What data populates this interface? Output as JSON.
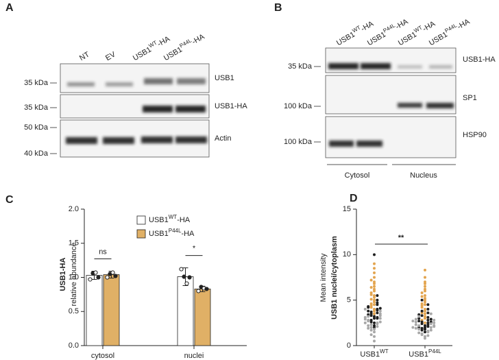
{
  "panel_labels": [
    "A",
    "B",
    "C",
    "D"
  ],
  "blot_a": {
    "lanes": [
      [
        "NT"
      ],
      [
        "EV"
      ],
      [
        "USB1",
        "WT",
        "-HA"
      ],
      [
        "USB1",
        "P44L",
        "-HA"
      ]
    ],
    "proteins": [
      "USB1",
      "USB1-HA",
      "Actin"
    ],
    "markers": [
      "35 kDa",
      "35 kDa",
      "50 kDa",
      "40 kDa"
    ]
  },
  "blot_b": {
    "lanes": [
      [
        "USB1",
        "WT",
        "-HA"
      ],
      [
        "USB1",
        "P44L",
        "-HA"
      ],
      [
        "USB1",
        "WT",
        "-HA"
      ],
      [
        "USB1",
        "P44L",
        "-HA"
      ]
    ],
    "proteins": [
      "USB1-HA",
      "SP1",
      "HSP90"
    ],
    "markers": [
      "35 kDa",
      "100 kDa",
      "100 kDa"
    ],
    "fractions": [
      "Cytosol",
      "Nucleus"
    ]
  },
  "chart_data": [
    {
      "type": "bar",
      "y_label": "USB1-HA",
      "y_sublabel": "relative abundance",
      "categories": [
        "cytosol",
        "nuclei"
      ],
      "series": [
        {
          "name": [
            "USB1",
            "WT",
            "-HA"
          ],
          "color": "#ffffff",
          "values": [
            1.03,
            1.01
          ],
          "errors": [
            0.06,
            0.13
          ],
          "points": [
            [
              0.97,
              1.06,
              1.07,
              1.0
            ],
            [
              1.12,
              1.01,
              0.91,
              1.0
            ]
          ]
        },
        {
          "name": [
            "USB1",
            "P44L",
            "-HA"
          ],
          "color": "#e0b066",
          "values": [
            1.04,
            0.83
          ],
          "errors": [
            0.05,
            0.04
          ],
          "points": [
            [
              1.0,
              1.05,
              1.07,
              1.02
            ],
            [
              0.8,
              0.86,
              0.84,
              0.83
            ]
          ]
        }
      ],
      "significance": [
        "ns",
        "*"
      ],
      "ylim": [
        0,
        2
      ],
      "yticks": [
        {
          "value": 0,
          "label": "0.0"
        },
        {
          "value": 0.5,
          "label": "0.5"
        },
        {
          "value": 1,
          "label": "1.0"
        },
        {
          "value": 1.5,
          "label": "1.5"
        },
        {
          "value": 2,
          "label": "2.0"
        }
      ]
    },
    {
      "type": "swarm",
      "y_label": "Mean intensity",
      "y_sublabel": "USB1 nuclei/cytoplasm",
      "categories": [
        [
          "USB1",
          "WT"
        ],
        [
          "USB1",
          "P44L"
        ]
      ],
      "groups": [
        {
          "series": [
            {
              "color": "#e3a550",
              "values": [
                3.5,
                4.0,
                4.5,
                5.0,
                5.5,
                6.0,
                6.5,
                7.0,
                7.5,
                8.0,
                8.5,
                9.0,
                4.2,
                4.8,
                5.3,
                5.8,
                6.2,
                6.8,
                3.8,
                4.6,
                5.1,
                7.2,
                5.6,
                6.4,
                4.4
              ]
            },
            {
              "color": "#1e1e1e",
              "values": [
                2.0,
                2.5,
                3.0,
                3.2,
                3.5,
                3.7,
                4.0,
                4.2,
                4.5,
                5.0,
                2.8,
                3.3,
                3.6,
                3.9,
                4.1,
                2.2,
                3.1,
                3.4,
                3.8,
                4.7,
                5.5,
                10.0,
                2.6,
                3.0,
                4.3
              ]
            },
            {
              "color": "#a8a8a8",
              "values": [
                1.0,
                1.5,
                1.8,
                2.0,
                2.3,
                2.5,
                2.8,
                3.0,
                3.2,
                3.5,
                1.2,
                1.7,
                2.1,
                2.4,
                2.7,
                2.9,
                3.3,
                3.8,
                4.0,
                0.5,
                2.2,
                2.6,
                1.9,
                3.1,
                2.5
              ]
            }
          ]
        },
        {
          "series": [
            {
              "color": "#e3a550",
              "values": [
                2.5,
                3.0,
                3.5,
                4.0,
                4.5,
                5.0,
                5.5,
                6.0,
                6.5,
                7.0,
                7.5,
                8.3,
                3.2,
                3.8,
                4.2,
                4.8,
                5.2,
                5.8,
                6.2,
                6.8,
                2.8,
                4.4,
                5.4,
                3.6,
                4.6
              ]
            },
            {
              "color": "#1e1e1e",
              "values": [
                1.5,
                1.8,
                2.0,
                2.2,
                2.4,
                2.6,
                2.8,
                3.0,
                3.3,
                3.6,
                4.0,
                4.5,
                1.9,
                2.1,
                2.3,
                2.5,
                2.7,
                2.9,
                3.1,
                3.4,
                1.7,
                2.0,
                2.6,
                3.8,
                5.0
              ]
            },
            {
              "color": "#a8a8a8",
              "values": [
                1.0,
                1.3,
                1.6,
                1.8,
                2.0,
                2.2,
                2.4,
                2.6,
                2.9,
                3.2,
                1.5,
                1.7,
                1.9,
                2.1,
                2.3,
                2.5,
                2.7,
                1.2,
                2.8,
                3.5,
                1.4,
                2.0,
                2.2,
                0.8,
                1.1
              ]
            }
          ]
        }
      ],
      "significance": "**",
      "ylim": [
        0,
        15
      ],
      "yticks": [
        0,
        5,
        10,
        15
      ]
    }
  ]
}
